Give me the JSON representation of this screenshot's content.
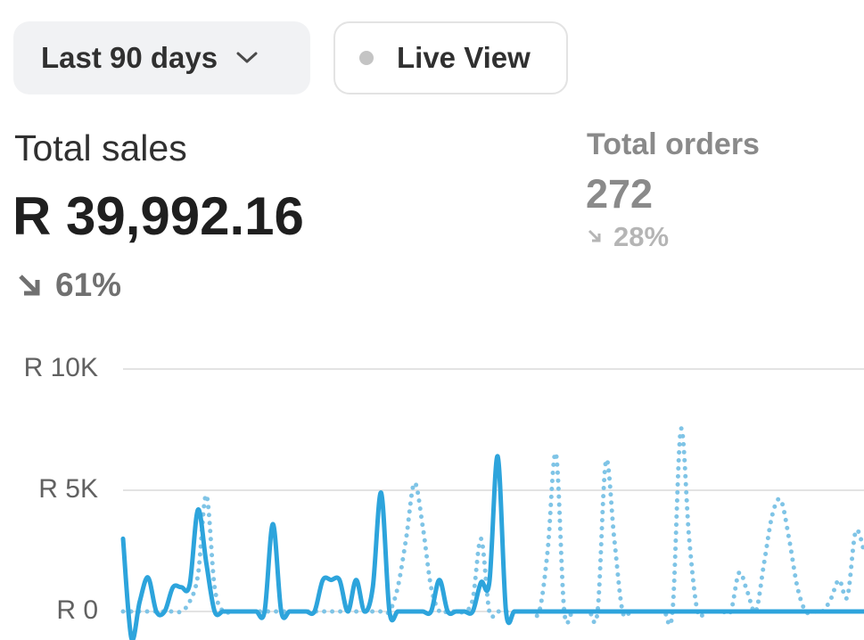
{
  "controls": {
    "date_range": "Last 90 days",
    "live_view": "Live View"
  },
  "metrics": [
    {
      "label": "Total sales",
      "value": "R 39,992.16",
      "change": "61%"
    },
    {
      "label": "Total orders",
      "value": "272",
      "change": "28%"
    }
  ],
  "chart_data": {
    "type": "line",
    "series": [
      {
        "color": "#7fc4e6",
        "style": "dotted",
        "values": [
          0,
          0,
          0,
          0,
          0,
          0,
          0,
          0,
          400,
          1500,
          4800,
          1000,
          0,
          0,
          0,
          0,
          0,
          0,
          0,
          0,
          0,
          0,
          0,
          0,
          0,
          0,
          0,
          0,
          0,
          0,
          0,
          0,
          0,
          1000,
          3000,
          5300,
          3500,
          1000,
          0,
          0,
          0,
          0,
          500,
          3000,
          0,
          0,
          0,
          0,
          0,
          0,
          0,
          2500,
          6500,
          0,
          0,
          0,
          0,
          0,
          6200,
          3000,
          0,
          0,
          0,
          0,
          0,
          0,
          0,
          7500,
          3000,
          0,
          0,
          0,
          0,
          0,
          1600,
          800,
          0,
          2000,
          4000,
          4600,
          3000,
          1000,
          0,
          0,
          0,
          500,
          1300,
          600,
          3300,
          2500
        ]
      },
      {
        "color": "#2da4dc",
        "style": "solid",
        "values": [
          3000,
          -1100,
          400,
          1400,
          0,
          0,
          1000,
          1000,
          1100,
          4200,
          2000,
          0,
          0,
          0,
          0,
          0,
          0,
          0,
          3600,
          0,
          0,
          0,
          0,
          0,
          1300,
          1300,
          1300,
          0,
          1300,
          0,
          1000,
          4900,
          0,
          0,
          0,
          0,
          0,
          0,
          1300,
          0,
          0,
          0,
          0,
          1200,
          1200,
          6400,
          0,
          0,
          0,
          0,
          0,
          0,
          0,
          0,
          0,
          0,
          0,
          0,
          0,
          0,
          0,
          0,
          0,
          0,
          0,
          0,
          0,
          0,
          0,
          0,
          0,
          0,
          0,
          0,
          0,
          0,
          0,
          0,
          0,
          0,
          0,
          0,
          0,
          0,
          0,
          0,
          0,
          0,
          0,
          0
        ]
      }
    ],
    "ylim": [
      -1200,
      10500
    ],
    "yticks": [
      {
        "value": 0,
        "label": "R 0"
      },
      {
        "value": 5000,
        "label": "R 5K"
      },
      {
        "value": 10000,
        "label": "R 10K"
      }
    ],
    "grid": true
  }
}
